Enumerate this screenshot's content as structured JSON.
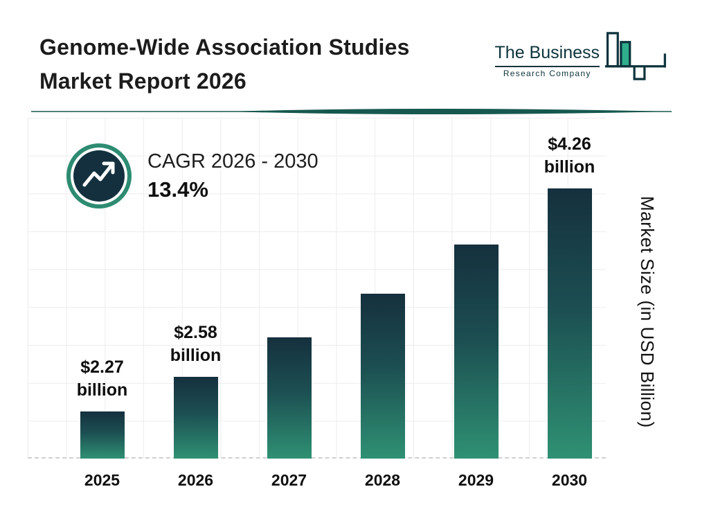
{
  "header": {
    "title_line1": "Genome-Wide Association Studies",
    "title_line2": "Market Report 2026",
    "logo": {
      "line1": "The Business",
      "line2": "Research Company"
    }
  },
  "cagr": {
    "label": "CAGR 2026 - 2030",
    "value": "13.4%"
  },
  "chart_data": {
    "type": "bar",
    "title": "Genome-Wide Association Studies Market Report 2026",
    "categories": [
      "2025",
      "2026",
      "2027",
      "2028",
      "2029",
      "2030"
    ],
    "values": [
      2.27,
      2.58,
      2.93,
      3.32,
      3.76,
      4.26
    ],
    "value_labels": [
      "$2.27\nbillion",
      "$2.58\nbillion",
      "",
      "",
      "",
      "$4.26\nbillion"
    ],
    "unit": "USD Billion",
    "ylabel": "Market Size (in USD Billion)",
    "xlabel": "",
    "cagr_label": "CAGR 2026 - 2030",
    "cagr_value": "13.4%",
    "grid": true,
    "legend_position": "none",
    "colors": {
      "bar_top": "#15303e",
      "bar_mid": "#1c4f52",
      "bar_bottom": "#2f9173",
      "accent_teal": "#2d8b71",
      "badge_fill": "#14303e",
      "divider": "#16584f",
      "logo_ink": "#0d333c",
      "logo_green": "#2fae8c",
      "text": "#1a1a1a",
      "grid_line": "#ececec"
    }
  }
}
